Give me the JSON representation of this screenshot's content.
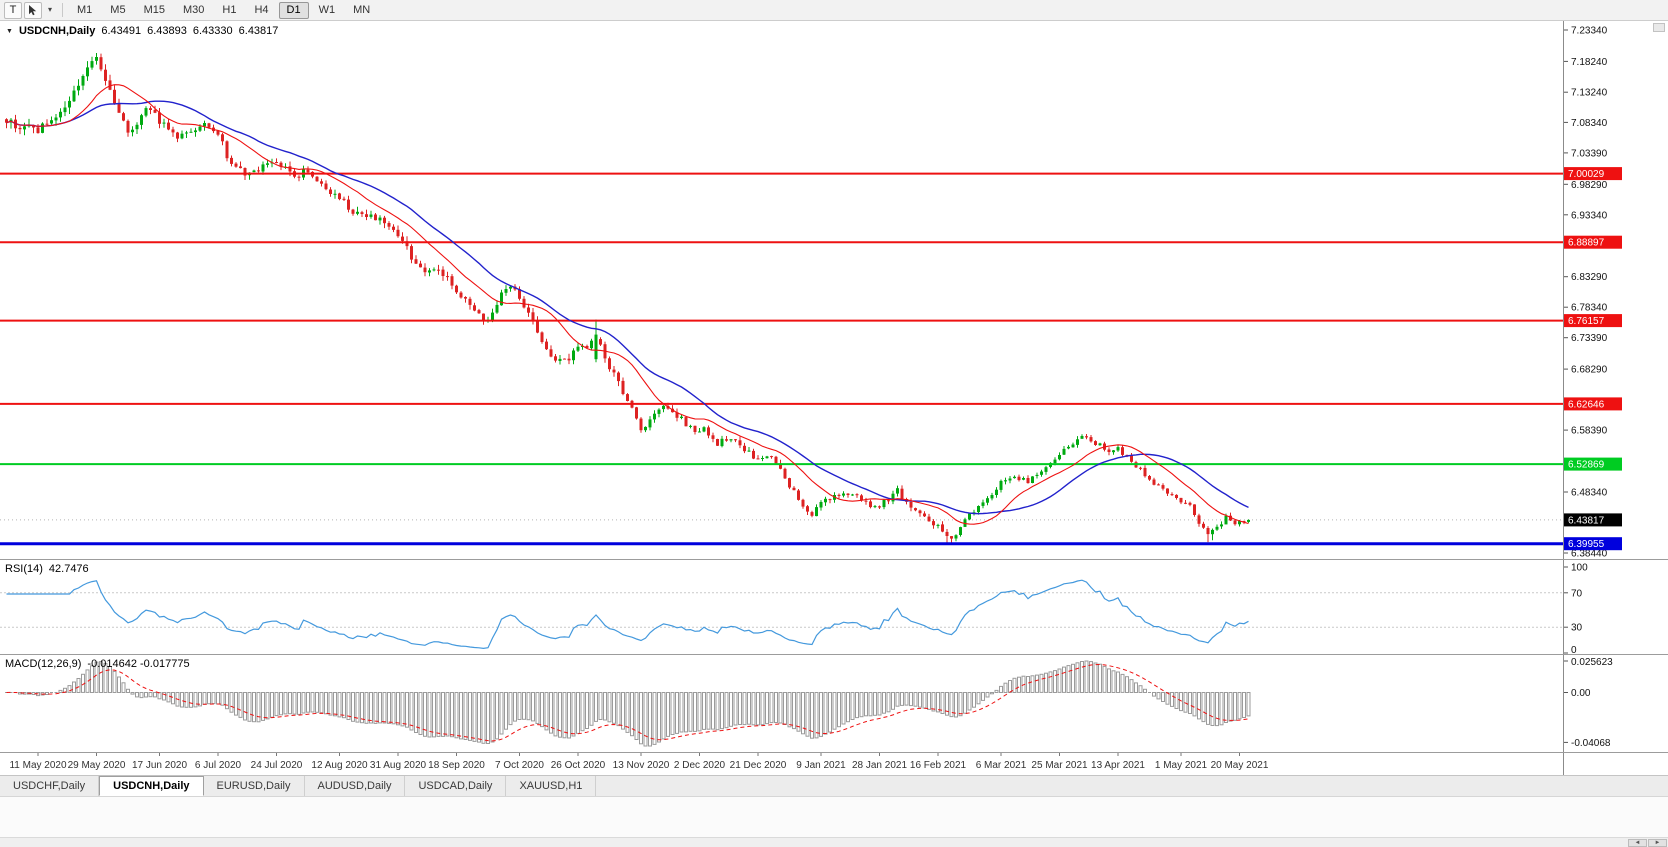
{
  "toolbar": {
    "t_button": "T",
    "timeframes": [
      "M1",
      "M5",
      "M15",
      "M30",
      "H1",
      "H4",
      "D1",
      "W1",
      "MN"
    ],
    "active_timeframe": "D1"
  },
  "icons": {
    "collapse_triangle": "▼",
    "dropdown": "▾",
    "scroll_left": "◄",
    "scroll_right": "►"
  },
  "chart_header": {
    "symbol": "USDCNH,Daily",
    "open": "6.43491",
    "high": "6.43893",
    "low": "6.43330",
    "close": "6.43817"
  },
  "price_axis": {
    "ticks": [
      {
        "label": "7.23340",
        "value": 7.2334
      },
      {
        "label": "7.18240",
        "value": 7.1824
      },
      {
        "label": "7.13240",
        "value": 7.1324
      },
      {
        "label": "7.08340",
        "value": 7.0834
      },
      {
        "label": "7.03390",
        "value": 7.0339
      },
      {
        "label": "6.98290",
        "value": 6.9829
      },
      {
        "label": "6.93340",
        "value": 6.9334
      },
      {
        "label": "6.83290",
        "value": 6.8329
      },
      {
        "label": "6.78340",
        "value": 6.7834
      },
      {
        "label": "6.73390",
        "value": 6.7339
      },
      {
        "label": "6.68290",
        "value": 6.6829
      },
      {
        "label": "6.58390",
        "value": 6.5839
      },
      {
        "label": "6.48340",
        "value": 6.4834
      },
      {
        "label": "6.38440",
        "value": 6.3844
      }
    ]
  },
  "levels": [
    {
      "label": "7.00029",
      "value": 7.00029,
      "color": "#ee1111",
      "width": 2
    },
    {
      "label": "6.88897",
      "value": 6.88897,
      "color": "#ee1111",
      "width": 2
    },
    {
      "label": "6.76157",
      "value": 6.76157,
      "color": "#ee1111",
      "width": 2
    },
    {
      "label": "6.62646",
      "value": 6.62646,
      "color": "#ee1111",
      "width": 2
    },
    {
      "label": "6.52869",
      "value": 6.52869,
      "color": "#00cc22",
      "width": 2
    },
    {
      "label": "6.39955",
      "value": 6.39955,
      "color": "#0000dd",
      "width": 3
    }
  ],
  "current_price": {
    "label": "6.43817",
    "value": 6.43817,
    "bg": "#000000",
    "fg": "#ffffff"
  },
  "rsi_panel": {
    "label": "RSI(14)",
    "value_text": "42.7476",
    "value": 42.7476,
    "line_color": "#4499dd",
    "levels": [
      70,
      30
    ],
    "axis": [
      {
        "label": "100",
        "value": 100
      },
      {
        "label": "70",
        "value": 70
      },
      {
        "label": "30",
        "value": 30
      },
      {
        "label": "0",
        "value": 0
      }
    ]
  },
  "macd_panel": {
    "label": "MACD(12,26,9)",
    "value_text": "-0.014642 -0.017775",
    "macd_value": -0.014642,
    "signal_value": -0.017775,
    "histogram_color": "#9b9b9b",
    "signal_color": "#ee1111",
    "axis": [
      {
        "label": "0.025623",
        "value": 0.025623
      },
      {
        "label": "0.00",
        "value": 0
      },
      {
        "label": "-0.04068",
        "value": -0.04068
      }
    ]
  },
  "time_axis": [
    {
      "label": "11 May 2020",
      "day": 0
    },
    {
      "label": "29 May 2020",
      "day": 13
    },
    {
      "label": "17 Jun 2020",
      "day": 27
    },
    {
      "label": "6 Jul 2020",
      "day": 40
    },
    {
      "label": "24 Jul 2020",
      "day": 53
    },
    {
      "label": "12 Aug 2020",
      "day": 67
    },
    {
      "label": "31 Aug 2020",
      "day": 80
    },
    {
      "label": "18 Sep 2020",
      "day": 93
    },
    {
      "label": "7 Oct 2020",
      "day": 107
    },
    {
      "label": "26 Oct 2020",
      "day": 120
    },
    {
      "label": "13 Nov 2020",
      "day": 134
    },
    {
      "label": "2 Dec 2020",
      "day": 147
    },
    {
      "label": "21 Dec 2020",
      "day": 160
    },
    {
      "label": "9 Jan 2021",
      "day": 174
    },
    {
      "label": "28 Jan 2021",
      "day": 187
    },
    {
      "label": "16 Feb 2021",
      "day": 200
    },
    {
      "label": "6 Mar 2021",
      "day": 214
    },
    {
      "label": "25 Mar 2021",
      "day": 227
    },
    {
      "label": "13 Apr 2021",
      "day": 240
    },
    {
      "label": "1 May 2021",
      "day": 254
    },
    {
      "label": "20 May 2021",
      "day": 267
    }
  ],
  "tabs": {
    "items": [
      "USDCHF,Daily",
      "US­DCNH,Daily",
      "EURUSD,Daily",
      "AUDUSD,Daily",
      "USDCAD,Daily",
      "XAUUSD,H1"
    ],
    "active": "US­DCNH,Daily"
  },
  "chart_data": {
    "type": "candlestick",
    "symbol": "USDCNH",
    "timeframe": "Daily",
    "y_axis": {
      "top": 7.2334,
      "bottom": 6.3844
    },
    "x_range_days": [
      -7,
      269
    ],
    "seed": 9,
    "up_color": "#00aa11",
    "down_color": "#dd2222",
    "ma_fast": {
      "period": 13,
      "color": "#ee1111"
    },
    "ma_slow": {
      "period": 25,
      "color": "#2222cc"
    },
    "rsi_period": 14,
    "macd": {
      "fast": 12,
      "slow": 26,
      "signal": 9
    },
    "noise_amp": [
      [
        20,
        0.012
      ],
      [
        130,
        0.009
      ],
      [
        210,
        0.0068
      ],
      [
        400,
        0.0058
      ]
    ],
    "price_anchors": [
      [
        -7,
        7.088
      ],
      [
        -4,
        7.076
      ],
      [
        0,
        7.071
      ],
      [
        4,
        7.091
      ],
      [
        7,
        7.116
      ],
      [
        10,
        7.152
      ],
      [
        12,
        7.178
      ],
      [
        13,
        7.186
      ],
      [
        15,
        7.151
      ],
      [
        17,
        7.119
      ],
      [
        20,
        7.071
      ],
      [
        22,
        7.081
      ],
      [
        24,
        7.101
      ],
      [
        26,
        7.096
      ],
      [
        28,
        7.079
      ],
      [
        31,
        7.063
      ],
      [
        34,
        7.073
      ],
      [
        37,
        7.079
      ],
      [
        40,
        7.062
      ],
      [
        42,
        7.031
      ],
      [
        44,
        7.006
      ],
      [
        47,
        6.999
      ],
      [
        50,
        7.009
      ],
      [
        52,
        7.019
      ],
      [
        54,
        7.013
      ],
      [
        57,
        6.997
      ],
      [
        60,
        7.005
      ],
      [
        62,
        6.989
      ],
      [
        64,
        6.973
      ],
      [
        67,
        6.959
      ],
      [
        70,
        6.941
      ],
      [
        73,
        6.933
      ],
      [
        76,
        6.923
      ],
      [
        79,
        6.913
      ],
      [
        81,
        6.893
      ],
      [
        83,
        6.863
      ],
      [
        85,
        6.846
      ],
      [
        88,
        6.843
      ],
      [
        91,
        6.829
      ],
      [
        94,
        6.801
      ],
      [
        97,
        6.779
      ],
      [
        99,
        6.758
      ],
      [
        101,
        6.771
      ],
      [
        103,
        6.807
      ],
      [
        105,
        6.819
      ],
      [
        107,
        6.793
      ],
      [
        109,
        6.773
      ],
      [
        111,
        6.746
      ],
      [
        113,
        6.717
      ],
      [
        115,
        6.699
      ],
      [
        118,
        6.701
      ],
      [
        120,
        6.713
      ],
      [
        123,
        6.726
      ],
      [
        124,
        6.737
      ],
      [
        126,
        6.701
      ],
      [
        128,
        6.673
      ],
      [
        130,
        6.646
      ],
      [
        132,
        6.616
      ],
      [
        134,
        6.586
      ],
      [
        136,
        6.599
      ],
      [
        138,
        6.615
      ],
      [
        140,
        6.623
      ],
      [
        143,
        6.601
      ],
      [
        146,
        6.579
      ],
      [
        148,
        6.586
      ],
      [
        151,
        6.561
      ],
      [
        154,
        6.573
      ],
      [
        157,
        6.553
      ],
      [
        160,
        6.533
      ],
      [
        163,
        6.541
      ],
      [
        166,
        6.506
      ],
      [
        169,
        6.473
      ],
      [
        172,
        6.446
      ],
      [
        174,
        6.463
      ],
      [
        177,
        6.479
      ],
      [
        180,
        6.483
      ],
      [
        183,
        6.471
      ],
      [
        186,
        6.458
      ],
      [
        189,
        6.473
      ],
      [
        191,
        6.487
      ],
      [
        193,
        6.464
      ],
      [
        196,
        6.445
      ],
      [
        199,
        6.433
      ],
      [
        201,
        6.419
      ],
      [
        203,
        6.409
      ],
      [
        205,
        6.427
      ],
      [
        208,
        6.453
      ],
      [
        211,
        6.473
      ],
      [
        214,
        6.498
      ],
      [
        217,
        6.509
      ],
      [
        220,
        6.501
      ],
      [
        223,
        6.515
      ],
      [
        226,
        6.539
      ],
      [
        229,
        6.557
      ],
      [
        231,
        6.569
      ],
      [
        233,
        6.573
      ],
      [
        235,
        6.563
      ],
      [
        238,
        6.549
      ],
      [
        240,
        6.554
      ],
      [
        243,
        6.533
      ],
      [
        246,
        6.513
      ],
      [
        249,
        6.491
      ],
      [
        252,
        6.478
      ],
      [
        254,
        6.469
      ],
      [
        256,
        6.459
      ],
      [
        258,
        6.433
      ],
      [
        260,
        6.414
      ],
      [
        262,
        6.426
      ],
      [
        264,
        6.441
      ],
      [
        266,
        6.434
      ],
      [
        268,
        6.437
      ],
      [
        269,
        6.438
      ]
    ],
    "specials": [
      {
        "d": 12,
        "high": 7.19
      },
      {
        "d": 13,
        "high": 7.196
      },
      {
        "d": 124,
        "open": 6.699,
        "high": 6.7635,
        "low": 6.694,
        "close": 6.739
      },
      {
        "d": 202,
        "low": 6.401
      },
      {
        "d": 203,
        "low": 6.3995
      },
      {
        "d": 260,
        "low": 6.402
      },
      {
        "d": 261,
        "low": 6.405
      }
    ],
    "last_candle": {
      "open": 6.43491,
      "high": 6.43893,
      "low": 6.4333,
      "close": 6.43817
    },
    "indicator_values": {
      "rsi": 42.7476,
      "macd": -0.014642,
      "macd_signal": -0.017775
    }
  }
}
